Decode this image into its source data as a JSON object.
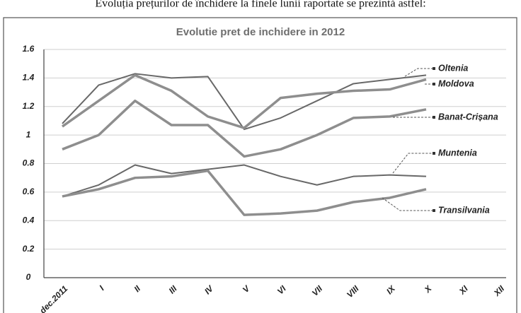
{
  "heading": "Evoluția prețurilor de închidere la finele lunii raportate se prezintă astfel:",
  "chart_data": {
    "type": "line",
    "title": "Evolutie pret de inchidere in 2012",
    "categories": [
      "dec.2011",
      "I",
      "II",
      "III",
      "IV",
      "V",
      "VI",
      "VII",
      "VIII",
      "IX",
      "X",
      "XI",
      "XII"
    ],
    "series": [
      {
        "name": "Oltenia",
        "color": "#686868",
        "width": 2,
        "values": [
          1.08,
          1.35,
          1.43,
          1.4,
          1.41,
          1.04,
          1.12,
          1.24,
          1.36,
          1.39,
          1.42,
          null,
          null
        ]
      },
      {
        "name": "Moldova",
        "color": "#8e8e8e",
        "width": 3.5,
        "values": [
          1.06,
          1.24,
          1.42,
          1.31,
          1.13,
          1.05,
          1.26,
          1.29,
          1.31,
          1.32,
          1.39,
          null,
          null
        ]
      },
      {
        "name": "Banat-Crișana",
        "color": "#8e8e8e",
        "width": 3.5,
        "values": [
          0.9,
          1.0,
          1.24,
          1.07,
          1.07,
          0.85,
          0.9,
          1.0,
          1.12,
          1.13,
          1.18,
          null,
          null
        ]
      },
      {
        "name": "Muntenia",
        "color": "#686868",
        "width": 2,
        "values": [
          0.57,
          0.65,
          0.79,
          0.73,
          0.76,
          0.79,
          0.71,
          0.65,
          0.71,
          0.72,
          0.71,
          null,
          null
        ]
      },
      {
        "name": "Transilvania",
        "color": "#8e8e8e",
        "width": 3.5,
        "values": [
          0.57,
          0.62,
          0.7,
          0.71,
          0.75,
          0.44,
          0.45,
          0.47,
          0.53,
          0.56,
          0.62,
          null,
          null
        ]
      }
    ],
    "ylim": [
      0,
      1.6
    ],
    "yticks": [
      0,
      0.2,
      0.4,
      0.6,
      0.8,
      1,
      1.2,
      1.4,
      1.6
    ],
    "grid": true
  }
}
